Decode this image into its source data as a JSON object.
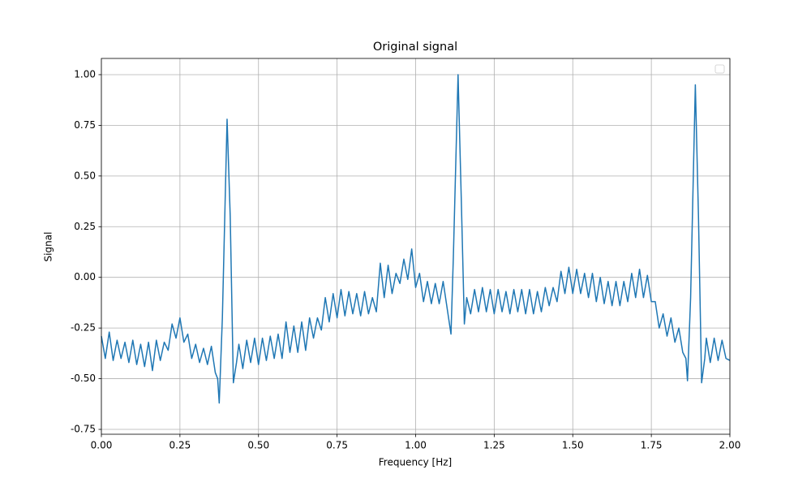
{
  "chart_data": {
    "type": "line",
    "title": "Original signal",
    "xlabel": "Frequency [Hz]",
    "ylabel": "Signal",
    "color": "#1f77b4",
    "grid": true,
    "legend": "upper right",
    "xlim": [
      0,
      2
    ],
    "ylim": [
      -0.774,
      1.08
    ],
    "xticks": [
      {
        "value": 0,
        "label": "0.00"
      },
      {
        "value": 0.25,
        "label": "0.25"
      },
      {
        "value": 0.5,
        "label": "0.50"
      },
      {
        "value": 0.75,
        "label": "0.75"
      },
      {
        "value": 1,
        "label": "1.00"
      },
      {
        "value": 1.25,
        "label": "1.25"
      },
      {
        "value": 1.5,
        "label": "1.50"
      },
      {
        "value": 1.75,
        "label": "1.75"
      },
      {
        "value": 2,
        "label": "2.00"
      }
    ],
    "yticks": [
      {
        "value": -0.75,
        "label": "-0.75"
      },
      {
        "value": -0.5,
        "label": "-0.50"
      },
      {
        "value": -0.25,
        "label": "-0.25"
      },
      {
        "value": 0,
        "label": "0.00"
      },
      {
        "value": 0.25,
        "label": "0.25"
      },
      {
        "value": 0.5,
        "label": "0.50"
      },
      {
        "value": 0.75,
        "label": "0.75"
      },
      {
        "value": 1,
        "label": "1.00"
      }
    ],
    "x": [
      0,
      0.0125,
      0.025,
      0.0375,
      0.05,
      0.0625,
      0.075,
      0.0875,
      0.1,
      0.1125,
      0.125,
      0.1375,
      0.15,
      0.1625,
      0.175,
      0.1875,
      0.2,
      0.2125,
      0.225,
      0.2375,
      0.25,
      0.2625,
      0.275,
      0.2875,
      0.3,
      0.3125,
      0.325,
      0.3375,
      0.35,
      0.3625,
      0.37,
      0.375,
      0.385,
      0.4,
      0.41,
      0.42,
      0.43,
      0.4375,
      0.45,
      0.4625,
      0.475,
      0.4875,
      0.5,
      0.5125,
      0.525,
      0.5375,
      0.55,
      0.5625,
      0.575,
      0.5875,
      0.6,
      0.6125,
      0.625,
      0.6375,
      0.65,
      0.6625,
      0.675,
      0.6875,
      0.7,
      0.7125,
      0.725,
      0.7375,
      0.75,
      0.7625,
      0.775,
      0.7875,
      0.8,
      0.8125,
      0.825,
      0.8375,
      0.85,
      0.8625,
      0.875,
      0.8875,
      0.9,
      0.9125,
      0.925,
      0.9375,
      0.95,
      0.9625,
      0.975,
      0.9875,
      1,
      1.0125,
      1.025,
      1.0375,
      1.05,
      1.0625,
      1.075,
      1.0875,
      1.1,
      1.1125,
      1.12,
      1.135,
      1.145,
      1.155,
      1.1625,
      1.175,
      1.1875,
      1.2,
      1.2125,
      1.225,
      1.2375,
      1.25,
      1.2625,
      1.275,
      1.2875,
      1.3,
      1.3125,
      1.325,
      1.3375,
      1.35,
      1.3625,
      1.375,
      1.3875,
      1.4,
      1.4125,
      1.425,
      1.4375,
      1.45,
      1.4625,
      1.475,
      1.4875,
      1.5,
      1.5125,
      1.525,
      1.5375,
      1.55,
      1.5625,
      1.575,
      1.5875,
      1.6,
      1.6125,
      1.625,
      1.6375,
      1.65,
      1.6625,
      1.675,
      1.6875,
      1.7,
      1.7125,
      1.725,
      1.7375,
      1.75,
      1.7625,
      1.775,
      1.7875,
      1.8,
      1.8125,
      1.825,
      1.8375,
      1.85,
      1.86,
      1.865,
      1.875,
      1.89,
      1.9,
      1.91,
      1.92,
      1.925,
      1.9375,
      1.95,
      1.9625,
      1.975,
      1.9875,
      2
    ],
    "values": [
      -0.29,
      -0.4,
      -0.27,
      -0.41,
      -0.31,
      -0.4,
      -0.32,
      -0.42,
      -0.31,
      -0.43,
      -0.33,
      -0.44,
      -0.32,
      -0.46,
      -0.31,
      -0.41,
      -0.32,
      -0.36,
      -0.23,
      -0.3,
      -0.2,
      -0.32,
      -0.28,
      -0.4,
      -0.33,
      -0.42,
      -0.35,
      -0.43,
      -0.34,
      -0.47,
      -0.5,
      -0.62,
      -0.2,
      0.78,
      0.3,
      -0.52,
      -0.42,
      -0.33,
      -0.45,
      -0.31,
      -0.42,
      -0.3,
      -0.43,
      -0.3,
      -0.41,
      -0.29,
      -0.4,
      -0.28,
      -0.4,
      -0.22,
      -0.37,
      -0.24,
      -0.37,
      -0.22,
      -0.36,
      -0.2,
      -0.3,
      -0.2,
      -0.26,
      -0.1,
      -0.22,
      -0.08,
      -0.2,
      -0.06,
      -0.19,
      -0.07,
      -0.18,
      -0.08,
      -0.19,
      -0.07,
      -0.18,
      -0.1,
      -0.17,
      0.07,
      -0.1,
      0.06,
      -0.08,
      0.02,
      -0.03,
      0.09,
      -0.01,
      0.14,
      -0.05,
      0.02,
      -0.12,
      -0.02,
      -0.13,
      -0.03,
      -0.13,
      -0.02,
      -0.15,
      -0.28,
      0.1,
      1.0,
      0.4,
      -0.23,
      -0.1,
      -0.18,
      -0.06,
      -0.17,
      -0.05,
      -0.17,
      -0.06,
      -0.18,
      -0.06,
      -0.17,
      -0.07,
      -0.18,
      -0.06,
      -0.17,
      -0.06,
      -0.18,
      -0.06,
      -0.18,
      -0.07,
      -0.17,
      -0.05,
      -0.14,
      -0.05,
      -0.12,
      0.03,
      -0.08,
      0.05,
      -0.08,
      0.04,
      -0.08,
      0.02,
      -0.1,
      0.02,
      -0.12,
      0.0,
      -0.13,
      -0.02,
      -0.14,
      -0.02,
      -0.14,
      -0.02,
      -0.12,
      0.02,
      -0.1,
      0.04,
      -0.1,
      0.01,
      -0.12,
      -0.12,
      -0.25,
      -0.18,
      -0.29,
      -0.2,
      -0.32,
      -0.25,
      -0.37,
      -0.4,
      -0.51,
      -0.1,
      0.95,
      0.3,
      -0.52,
      -0.4,
      -0.3,
      -0.42,
      -0.3,
      -0.41,
      -0.31,
      -0.4,
      -0.41
    ]
  }
}
